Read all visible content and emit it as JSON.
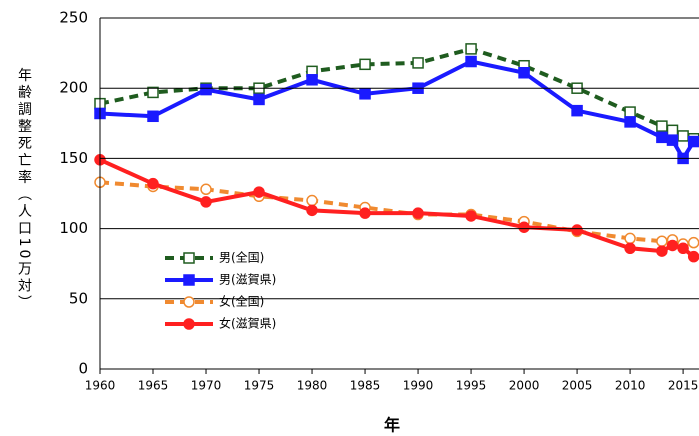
{
  "chart_data": {
    "type": "line",
    "y_label": "年齢調整死亡率（人口10万対）",
    "x_label": "年",
    "x": [
      1960,
      1965,
      1970,
      1975,
      1980,
      1985,
      1990,
      1995,
      2000,
      2005,
      2010,
      2013,
      2014,
      2015,
      2016
    ],
    "series": [
      {
        "name": "男(全国)",
        "color": "#1f5c1f",
        "dashed": true,
        "marker": "square",
        "filled": false,
        "values": [
          189,
          197,
          200,
          200,
          212,
          217,
          218,
          228,
          216,
          200,
          183,
          173,
          170,
          166,
          164
        ]
      },
      {
        "name": "男(滋賀県)",
        "color": "#1a1aff",
        "dashed": false,
        "marker": "square",
        "filled": true,
        "values": [
          182,
          180,
          199,
          192,
          206,
          196,
          200,
          219,
          211,
          184,
          176,
          165,
          163,
          150,
          162
        ]
      },
      {
        "name": "女(全国)",
        "color": "#f08a30",
        "dashed": true,
        "marker": "circle",
        "filled": false,
        "values": [
          133,
          130,
          128,
          123,
          120,
          115,
          110,
          110,
          105,
          98,
          93,
          91,
          92,
          89,
          90
        ]
      },
      {
        "name": "女(滋賀県)",
        "color": "#ff2020",
        "dashed": false,
        "marker": "circle",
        "filled": true,
        "values": [
          149,
          132,
          119,
          126,
          113,
          111,
          111,
          109,
          101,
          99,
          86,
          84,
          88,
          86,
          80
        ]
      }
    ],
    "xlim": [
      1960,
      2016.5
    ],
    "ylim": [
      0,
      250
    ],
    "xticks": [
      1960,
      1965,
      1970,
      1975,
      1980,
      1985,
      1990,
      1995,
      2000,
      2005,
      2010,
      2015
    ],
    "yticks": [
      0,
      50,
      100,
      150,
      200,
      250
    ],
    "grid": true,
    "legend": "lower left"
  }
}
